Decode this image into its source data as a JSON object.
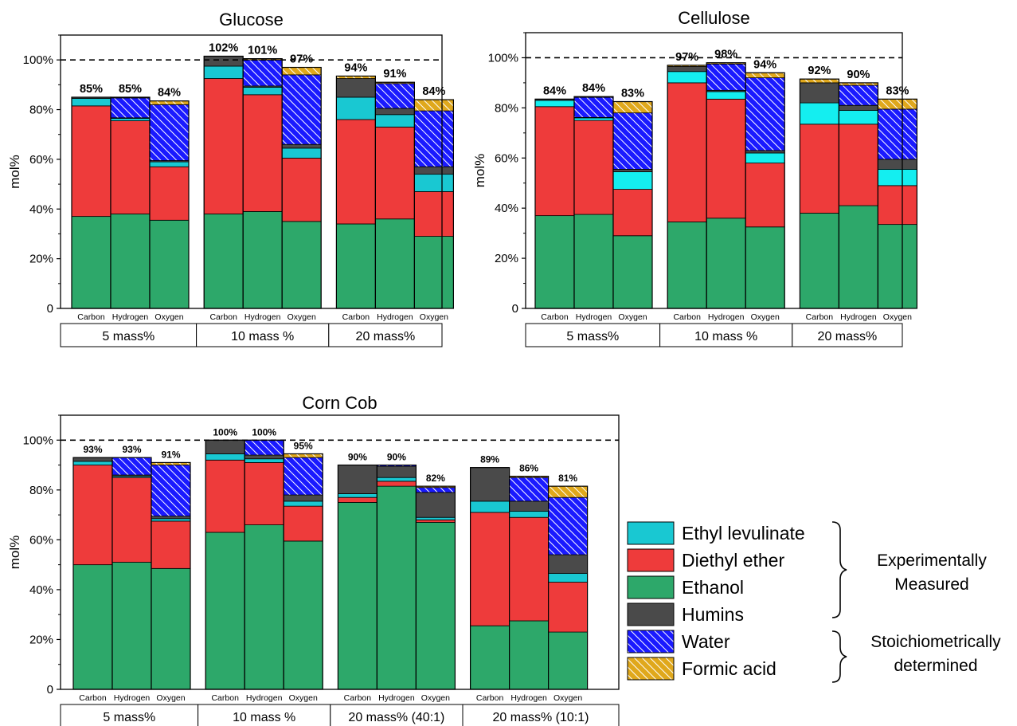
{
  "colors": {
    "ethyl_levulinate": "#19c8d2",
    "diethyl_ether": "#ee3b3b",
    "ethanol": "#2da86a",
    "humins": "#4a4a4a",
    "water": "#1a1aff",
    "formic_acid": "#e0a81c",
    "ethyl_levulinate_cellulose": "#14eef0"
  },
  "legend": {
    "items": [
      {
        "key": "ethyl_levulinate",
        "label": "Ethyl levulinate",
        "hatch": false
      },
      {
        "key": "diethyl_ether",
        "label": "Diethyl ether",
        "hatch": false
      },
      {
        "key": "ethanol",
        "label": "Ethanol",
        "hatch": false
      },
      {
        "key": "humins",
        "label": "Humins",
        "hatch": false
      },
      {
        "key": "water",
        "label": "Water",
        "hatch": true
      },
      {
        "key": "formic_acid",
        "label": "Formic acid",
        "hatch": true
      }
    ],
    "group_experimental_line1": "Experimentally",
    "group_experimental_line2": "Measured",
    "group_stoich_line1": "Stoichiometrically",
    "group_stoich_line2": "determined"
  },
  "chart_data": [
    {
      "type": "bar",
      "stacked": true,
      "title": "Glucose",
      "ylabel": "mol%",
      "ylim": [
        0,
        110
      ],
      "yticks": [
        "0",
        "20%",
        "40%",
        "60%",
        "80%",
        "100%"
      ],
      "reference_line": 100,
      "element_labels": [
        "Carbon",
        "Hydrogen",
        "Oxygen"
      ],
      "groups": [
        {
          "label": "5 mass%",
          "bars": [
            {
              "total_label": "85%",
              "ethanol": 37,
              "diethyl_ether": 44.5,
              "ethyl_levulinate": 3,
              "humins": 0.5,
              "water": 0,
              "formic_acid": 0
            },
            {
              "total_label": "85%",
              "ethanol": 38,
              "diethyl_ether": 37.5,
              "ethyl_levulinate": 1,
              "humins": 0.2,
              "water": 8,
              "formic_acid": 0.3
            },
            {
              "total_label": "84%",
              "ethanol": 35.5,
              "diethyl_ether": 21.5,
              "ethyl_levulinate": 2,
              "humins": 0.5,
              "water": 22.5,
              "formic_acid": 1.5
            }
          ]
        },
        {
          "label": "10 mass %",
          "bars": [
            {
              "total_label": "102%",
              "ethanol": 38,
              "diethyl_ether": 54.5,
              "ethyl_levulinate": 5,
              "humins": 4,
              "water": 0,
              "formic_acid": 0
            },
            {
              "total_label": "101%",
              "ethanol": 39,
              "diethyl_ether": 47,
              "ethyl_levulinate": 3,
              "humins": 0.5,
              "water": 10.5,
              "formic_acid": 0.5
            },
            {
              "total_label": "97%",
              "ethanol": 35,
              "diethyl_ether": 25.5,
              "ethyl_levulinate": 4,
              "humins": 1.5,
              "water": 28,
              "formic_acid": 3
            }
          ]
        },
        {
          "label": "20 mass%",
          "bars": [
            {
              "total_label": "94%",
              "ethanol": 34,
              "diethyl_ether": 42,
              "ethyl_levulinate": 9,
              "humins": 7.5,
              "water": 0,
              "formic_acid": 1
            },
            {
              "total_label": "91%",
              "ethanol": 36,
              "diethyl_ether": 37,
              "ethyl_levulinate": 5,
              "humins": 2.5,
              "water": 10,
              "formic_acid": 0.5
            },
            {
              "total_label": "84%",
              "ethanol": 29,
              "diethyl_ether": 18,
              "ethyl_levulinate": 7,
              "humins": 3,
              "water": 22.5,
              "formic_acid": 4.5
            }
          ]
        }
      ]
    },
    {
      "type": "bar",
      "stacked": true,
      "title": "Cellulose",
      "ylabel": "mol%",
      "ylim": [
        0,
        110
      ],
      "yticks": [
        "0",
        "20%",
        "40%",
        "60%",
        "80%",
        "100%"
      ],
      "reference_line": 100,
      "element_labels": [
        "Carbon",
        "Hydrogen",
        "Oxygen"
      ],
      "groups": [
        {
          "label": "5 mass%",
          "bars": [
            {
              "total_label": "84%",
              "ethanol": 37,
              "diethyl_ether": 43.5,
              "ethyl_levulinate": 2.5,
              "humins": 0.5,
              "water": 0,
              "formic_acid": 0
            },
            {
              "total_label": "84%",
              "ethanol": 37.5,
              "diethyl_ether": 37.5,
              "ethyl_levulinate": 1,
              "humins": 0.2,
              "water": 8,
              "formic_acid": 0.3
            },
            {
              "total_label": "83%",
              "ethanol": 29,
              "diethyl_ether": 18.5,
              "ethyl_levulinate": 7,
              "humins": 1,
              "water": 22.5,
              "formic_acid": 4.5
            }
          ]
        },
        {
          "label": "10 mass %",
          "bars": [
            {
              "total_label": "97%",
              "ethanol": 34.5,
              "diethyl_ether": 55.5,
              "ethyl_levulinate": 4.5,
              "humins": 2,
              "water": 0,
              "formic_acid": 0.5
            },
            {
              "total_label": "98%",
              "ethanol": 36,
              "diethyl_ether": 47.5,
              "ethyl_levulinate": 3,
              "humins": 0.5,
              "water": 10.5,
              "formic_acid": 0.5
            },
            {
              "total_label": "94%",
              "ethanol": 32.5,
              "diethyl_ether": 25.5,
              "ethyl_levulinate": 4,
              "humins": 1,
              "water": 29,
              "formic_acid": 2
            }
          ]
        },
        {
          "label": "20 mass%",
          "bars": [
            {
              "total_label": "92%",
              "ethanol": 38,
              "diethyl_ether": 35.5,
              "ethyl_levulinate": 8.5,
              "humins": 8,
              "water": 0,
              "formic_acid": 1.5
            },
            {
              "total_label": "90%",
              "ethanol": 41,
              "diethyl_ether": 32.5,
              "ethyl_levulinate": 5.5,
              "humins": 2,
              "water": 8,
              "formic_acid": 1
            },
            {
              "total_label": "83%",
              "ethanol": 33.5,
              "diethyl_ether": 15.5,
              "ethyl_levulinate": 6.5,
              "humins": 4,
              "water": 20,
              "formic_acid": 4
            }
          ]
        }
      ]
    },
    {
      "type": "bar",
      "stacked": true,
      "title": "Corn Cob",
      "ylabel": "mol%",
      "ylim": [
        0,
        110
      ],
      "yticks": [
        "0",
        "20%",
        "40%",
        "60%",
        "80%",
        "100%"
      ],
      "reference_line": 100,
      "element_labels": [
        "Carbon",
        "Hydrogen",
        "Oxygen"
      ],
      "groups": [
        {
          "label": "5 mass%",
          "bars": [
            {
              "total_label": "93%",
              "ethanol": 50,
              "diethyl_ether": 40,
              "ethyl_levulinate": 1.5,
              "humins": 1.5,
              "water": 0,
              "formic_acid": 0
            },
            {
              "total_label": "93%",
              "ethanol": 51,
              "diethyl_ether": 34,
              "ethyl_levulinate": 0.5,
              "humins": 0.5,
              "water": 7,
              "formic_acid": 0
            },
            {
              "total_label": "91%",
              "ethanol": 48.5,
              "diethyl_ether": 19,
              "ethyl_levulinate": 1,
              "humins": 1,
              "water": 20.5,
              "formic_acid": 1
            }
          ]
        },
        {
          "label": "10 mass %",
          "bars": [
            {
              "total_label": "100%",
              "ethanol": 63,
              "diethyl_ether": 29,
              "ethyl_levulinate": 2.5,
              "humins": 5.5,
              "water": 0,
              "formic_acid": 0
            },
            {
              "total_label": "100%",
              "ethanol": 66,
              "diethyl_ether": 25,
              "ethyl_levulinate": 1.5,
              "humins": 1.5,
              "water": 6,
              "formic_acid": 0
            },
            {
              "total_label": "95%",
              "ethanol": 59.5,
              "diethyl_ether": 14,
              "ethyl_levulinate": 2,
              "humins": 2.5,
              "water": 15,
              "formic_acid": 1.5
            }
          ]
        },
        {
          "label": "20 mass% (40:1)",
          "bars": [
            {
              "total_label": "90%",
              "ethanol": 75,
              "diethyl_ether": 2,
              "ethyl_levulinate": 1.5,
              "humins": 11.5,
              "water": 0,
              "formic_acid": 0
            },
            {
              "total_label": "90%",
              "ethanol": 81.5,
              "diethyl_ether": 2,
              "ethyl_levulinate": 1.5,
              "humins": 4.5,
              "water": 0.5,
              "formic_acid": 0
            },
            {
              "total_label": "82%",
              "ethanol": 67,
              "diethyl_ether": 1,
              "ethyl_levulinate": 1,
              "humins": 10,
              "water": 2,
              "formic_acid": 0.5
            }
          ]
        },
        {
          "label": "20 mass% (10:1)",
          "bars": [
            {
              "total_label": "89%",
              "ethanol": 25.5,
              "diethyl_ether": 45.5,
              "ethyl_levulinate": 4.5,
              "humins": 13.5,
              "water": 0,
              "formic_acid": 0
            },
            {
              "total_label": "86%",
              "ethanol": 27.5,
              "diethyl_ether": 41.5,
              "ethyl_levulinate": 2.5,
              "humins": 4,
              "water": 9.5,
              "formic_acid": 0.5
            },
            {
              "total_label": "81%",
              "ethanol": 23,
              "diethyl_ether": 20,
              "ethyl_levulinate": 3.5,
              "humins": 7.5,
              "water": 23,
              "formic_acid": 4.5
            }
          ]
        }
      ]
    }
  ]
}
